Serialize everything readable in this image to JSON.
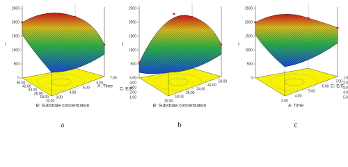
{
  "panels": [
    {
      "label": "a",
      "z_axis": "I",
      "z_ticks": [
        "0",
        "500",
        "1000",
        "1500",
        "2000",
        "2500"
      ],
      "bottom_axis": "B: Substrate concentration",
      "bottom_ticks": [
        "50.00",
        "42.00",
        "34.00",
        "26.00",
        "18.00",
        "10.00"
      ],
      "side_axis": "A: Time",
      "side_ticks": [
        "3.00",
        "4.00",
        "5.00",
        "6.00",
        "7.00"
      ]
    },
    {
      "label": "b",
      "z_axis": "I",
      "z_ticks": [
        "0",
        "500",
        "1000",
        "1500",
        "2000",
        "2500"
      ],
      "bottom_axis": "B: Substrate concentration",
      "bottom_ticks": [
        "10.00",
        "18.00",
        "26.00",
        "34.00",
        "42.00",
        "50.00"
      ],
      "side_axis": "C: E/S",
      "side_ticks": [
        "1.00",
        "2.00",
        "3.00",
        "4.00",
        "5.00"
      ]
    },
    {
      "label": "c",
      "z_axis": "I",
      "z_ticks": [
        "0",
        "500",
        "1000",
        "1500",
        "2000",
        "2500"
      ],
      "bottom_axis": "A: Time",
      "bottom_ticks": [
        "3.00",
        "4.00",
        "5.00",
        "6.00",
        "7.00"
      ],
      "side_axis": "C: E/S",
      "side_ticks": [
        "1.00",
        "2.00",
        "3.00",
        "4.00",
        "5.00"
      ]
    }
  ]
}
